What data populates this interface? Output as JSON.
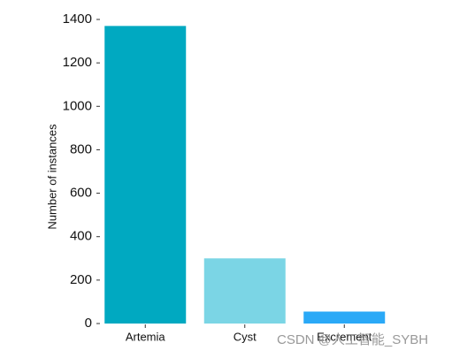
{
  "chart_data": {
    "type": "bar",
    "y_label": "Number of instances",
    "categories": [
      "Artemia",
      "Cyst",
      "Excrement"
    ],
    "values": [
      1370,
      300,
      55
    ],
    "colors": [
      "#00a9c1",
      "#7bd5e5",
      "#2aa9f7"
    ],
    "ylim": [
      0,
      1400
    ],
    "yticks": [
      0,
      200,
      400,
      600,
      800,
      1000,
      1200,
      1400
    ],
    "watermark": "CSDN @人工智能_SYBH"
  }
}
